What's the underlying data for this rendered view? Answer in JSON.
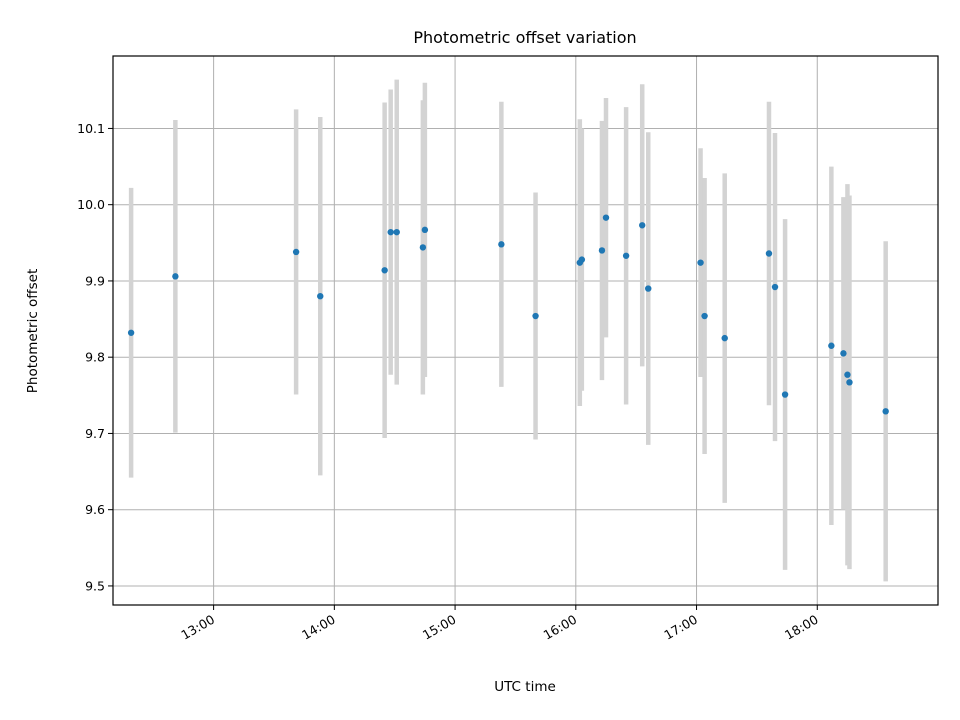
{
  "chart_data": {
    "type": "scatter",
    "title": "Photometric offset variation",
    "xlabel": "UTC time",
    "ylabel": "Photometric offset",
    "x_unit": "UTC time (HH:MM)",
    "xlim": [
      "12:10",
      "19:00"
    ],
    "ylim": [
      9.475,
      10.195
    ],
    "xticks": [
      "13:00",
      "14:00",
      "15:00",
      "16:00",
      "17:00",
      "18:00"
    ],
    "yticks": [
      "9.5",
      "9.6",
      "9.7",
      "9.8",
      "9.9",
      "10.0",
      "10.1"
    ],
    "grid": true,
    "legend": "none",
    "colors": {
      "point": "#1f77b4",
      "errorbar": "#d3d3d3",
      "grid": "#b0b0b0"
    },
    "points": [
      {
        "x": "12:19",
        "y": 9.832,
        "yerr": 0.19
      },
      {
        "x": "12:41",
        "y": 9.906,
        "yerr": 0.205
      },
      {
        "x": "13:41",
        "y": 9.938,
        "yerr": 0.187
      },
      {
        "x": "13:53",
        "y": 9.88,
        "yerr": 0.235
      },
      {
        "x": "14:25",
        "y": 9.914,
        "yerr": 0.22
      },
      {
        "x": "14:28",
        "y": 9.964,
        "yerr": 0.187
      },
      {
        "x": "14:31",
        "y": 9.964,
        "yerr": 0.2
      },
      {
        "x": "14:44",
        "y": 9.944,
        "yerr": 0.193
      },
      {
        "x": "14:45",
        "y": 9.967,
        "yerr": 0.193
      },
      {
        "x": "15:23",
        "y": 9.948,
        "yerr": 0.187
      },
      {
        "x": "15:40",
        "y": 9.854,
        "yerr": 0.162
      },
      {
        "x": "16:02",
        "y": 9.924,
        "yerr": 0.188
      },
      {
        "x": "16:03",
        "y": 9.928,
        "yerr": 0.172
      },
      {
        "x": "16:13",
        "y": 9.94,
        "yerr": 0.17
      },
      {
        "x": "16:15",
        "y": 9.983,
        "yerr": 0.157
      },
      {
        "x": "16:25",
        "y": 9.933,
        "yerr": 0.195
      },
      {
        "x": "16:33",
        "y": 9.973,
        "yerr": 0.185
      },
      {
        "x": "16:36",
        "y": 9.89,
        "yerr": 0.205
      },
      {
        "x": "17:02",
        "y": 9.924,
        "yerr": 0.15
      },
      {
        "x": "17:04",
        "y": 9.854,
        "yerr": 0.181
      },
      {
        "x": "17:14",
        "y": 9.825,
        "yerr": 0.216
      },
      {
        "x": "17:36",
        "y": 9.936,
        "yerr": 0.199
      },
      {
        "x": "17:39",
        "y": 9.892,
        "yerr": 0.202
      },
      {
        "x": "17:44",
        "y": 9.751,
        "yerr": 0.23
      },
      {
        "x": "18:07",
        "y": 9.815,
        "yerr": 0.235
      },
      {
        "x": "18:13",
        "y": 9.805,
        "yerr": 0.205
      },
      {
        "x": "18:15",
        "y": 9.777,
        "yerr": 0.25
      },
      {
        "x": "18:16",
        "y": 9.767,
        "yerr": 0.245
      },
      {
        "x": "18:34",
        "y": 9.729,
        "yerr": 0.223
      }
    ]
  }
}
